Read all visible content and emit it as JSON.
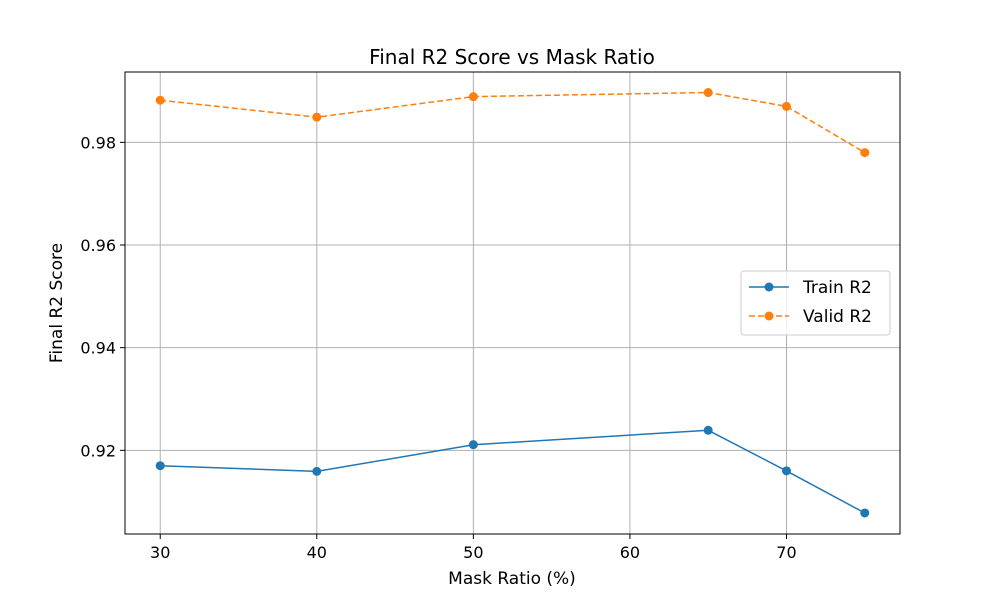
{
  "chart_data": {
    "type": "line",
    "title": "Final R2 Score vs Mask Ratio",
    "xlabel": "Mask Ratio (%)",
    "ylabel": "Final R2 Score",
    "x": [
      30,
      40,
      50,
      65,
      70,
      75
    ],
    "xlim": [
      27.75,
      77.25
    ],
    "ylim": [
      0.9037,
      0.9937
    ],
    "xticks": [
      30,
      40,
      50,
      60,
      70
    ],
    "xtick_labels": [
      "30",
      "40",
      "50",
      "60",
      "70"
    ],
    "yticks": [
      0.92,
      0.94,
      0.96,
      0.98
    ],
    "ytick_labels": [
      "0.92",
      "0.94",
      "0.96",
      "0.98"
    ],
    "grid": true,
    "legend_position": "center-right",
    "series": [
      {
        "name": "Train R2",
        "color": "#1f77b4",
        "linestyle": "solid",
        "marker": "circle",
        "values": [
          0.917,
          0.9159,
          0.9211,
          0.9239,
          0.916,
          0.9078
        ]
      },
      {
        "name": "Valid R2",
        "color": "#ff7f0e",
        "linestyle": "dashed",
        "marker": "circle",
        "values": [
          0.9882,
          0.9849,
          0.9889,
          0.9897,
          0.987,
          0.978
        ]
      }
    ]
  }
}
